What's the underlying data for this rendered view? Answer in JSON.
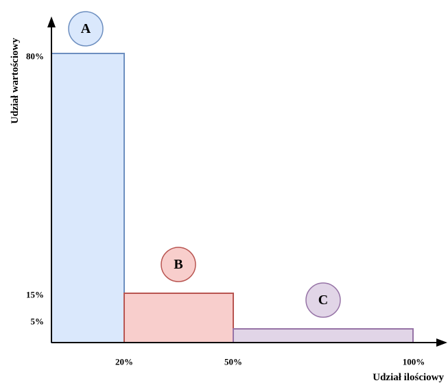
{
  "chart_data": {
    "type": "bar",
    "title": "",
    "xlabel": "Udział ilościowy",
    "ylabel": "Udział wartościowy",
    "categories": [
      "A",
      "B",
      "C"
    ],
    "x_ranges": [
      [
        0,
        20
      ],
      [
        20,
        50
      ],
      [
        50,
        100
      ]
    ],
    "values": [
      80,
      15,
      5
    ],
    "x_ticks": [
      "20%",
      "50%",
      "100%"
    ],
    "y_ticks": [
      "80%",
      "15%",
      "5%"
    ],
    "grid": false,
    "colors": [
      {
        "fill": "#dae8fc",
        "stroke": "#6c8ebf"
      },
      {
        "fill": "#f8cecc",
        "stroke": "#b85450"
      },
      {
        "fill": "#e1d5e7",
        "stroke": "#9673a6"
      }
    ]
  }
}
